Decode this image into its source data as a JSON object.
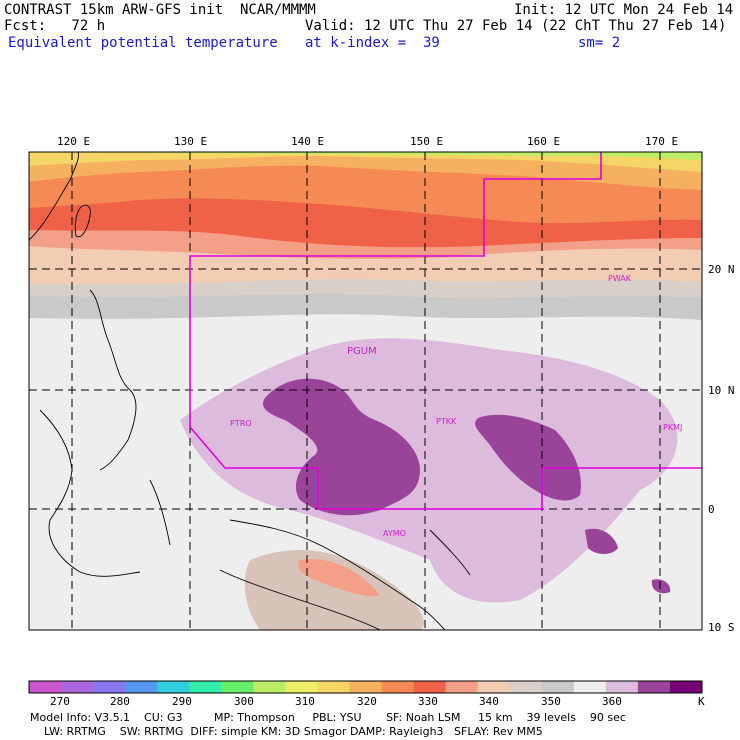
{
  "header": {
    "line1_left": "CONTRAST 15km ARW-GFS init  NCAR/MMMM",
    "line1_right": "Init: 12 UTC Mon 24 Feb 14",
    "fcst": "Fcst:   72 h",
    "valid": "Valid: 12 UTC Thu 27 Feb 14 (22 ChT Thu 27 Feb 14)",
    "field": "Equivalent potential temperature",
    "level": "at k-index =  39",
    "smoothing": "sm= 2"
  },
  "axes": {
    "lon_labels": [
      "120 E",
      "130 E",
      "140 E",
      "150 E",
      "160 E",
      "170 E"
    ],
    "lat_labels": [
      "20 N",
      "10 N",
      "0",
      "10 S"
    ]
  },
  "stations": [
    "PWAK",
    "PGUM",
    "PTRO",
    "PTKK",
    "PKMJ",
    "AYMO"
  ],
  "colorbar": {
    "labels": [
      "270",
      "280",
      "290",
      "300",
      "310",
      "320",
      "330",
      "340",
      "350",
      "360"
    ],
    "unit": "K",
    "colors": [
      "#cc55cc",
      "#aa66dd",
      "#8877ee",
      "#5599ee",
      "#33ccdd",
      "#33eeaa",
      "#66ee66",
      "#bbee66",
      "#eeee66",
      "#f5d566",
      "#f5b060",
      "#f58a55",
      "#f06248",
      "#f4a088",
      "#f2cdb3",
      "#d8d0c8",
      "#c9c9c9",
      "#eeeeee",
      "#ddbbdd",
      "#994499",
      "#770077"
    ]
  },
  "footer": {
    "line1": "Model Info: V3.5.1    CU: G3         MP: Thompson     PBL: YSU       SF: Noah LSM     15 km    39 levels    90 sec",
    "line2": "    LW: RRTMG    SW: RRTMG  DIFF: simple KM: 3D Smagor DAMP: Rayleigh3   SFLAY: Rev MM5"
  }
}
